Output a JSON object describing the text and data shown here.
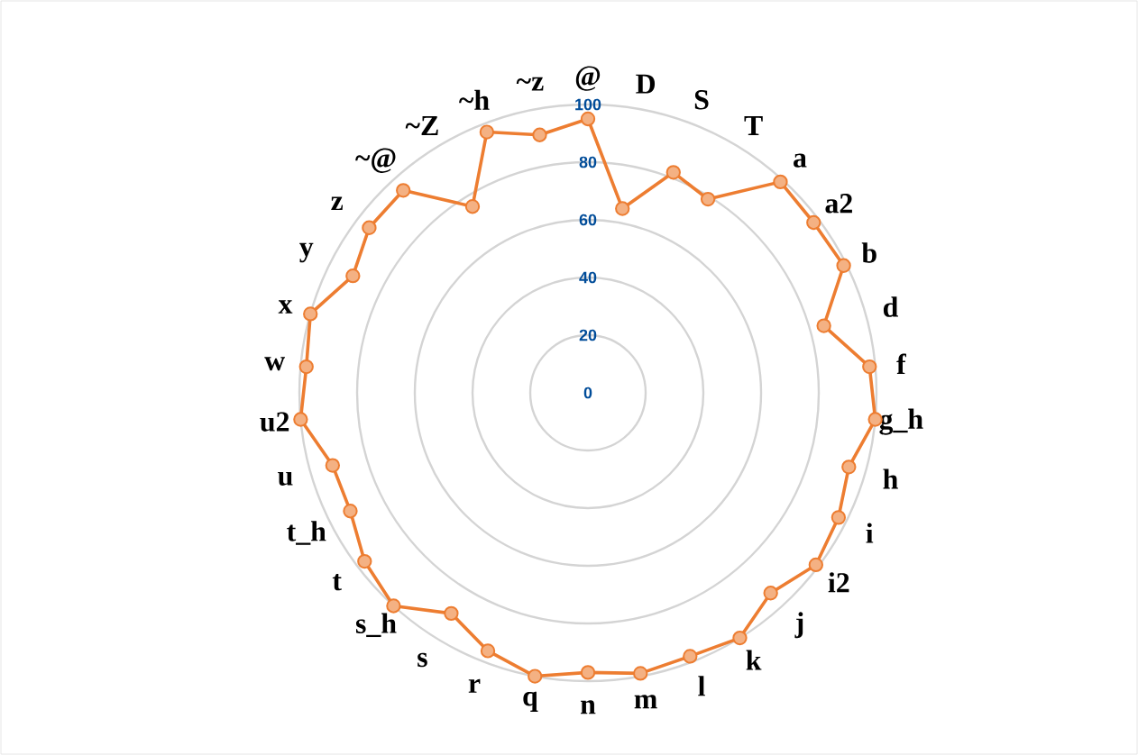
{
  "chart_data": {
    "type": "radar",
    "categories": [
      "@",
      "D",
      "S",
      "T",
      "a",
      "a2",
      "b",
      "d",
      "f",
      "g_h",
      "h",
      "i",
      "i2",
      "j",
      "k",
      "l",
      "m",
      "n",
      "q",
      "r",
      "s",
      "s_h",
      "t",
      "t_h",
      "u",
      "u2",
      "w",
      "x",
      "y",
      "z",
      "~@",
      "~Z",
      "~h",
      "~z"
    ],
    "series": [
      {
        "color": "#ed7d31",
        "values": [
          95,
          65,
          82,
          79,
          99,
          98,
          99,
          85,
          98,
          100,
          94,
          97,
          99,
          94,
          100,
          98,
          99,
          97,
          100,
          96,
          90,
          100,
          97,
          92,
          92,
          100,
          98,
          100,
          91,
          95,
          95,
          76,
          97,
          91
        ]
      }
    ],
    "ylim": [
      0,
      100
    ],
    "yticks": [
      0,
      20,
      40,
      60,
      80,
      100
    ],
    "grid": true,
    "marker": "circle",
    "line_style": "solid"
  }
}
